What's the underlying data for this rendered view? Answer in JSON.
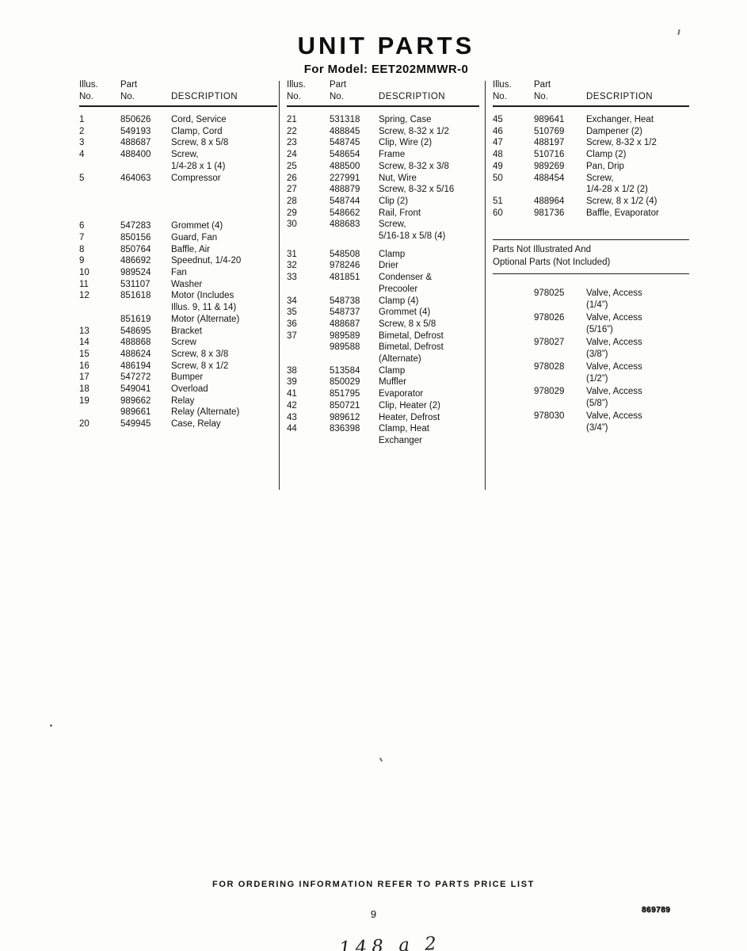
{
  "page": {
    "title": "UNIT PARTS",
    "subtitle": "For Model: EET202MMWR-0",
    "footer_note": "FOR ORDERING INFORMATION REFER TO PARTS PRICE LIST",
    "page_number": "9",
    "doc_number": "869789",
    "handwritten_note": "148 a 2"
  },
  "table_headers": {
    "illus": "Illus.",
    "part": "Part",
    "no": "No.",
    "description": "DESCRIPTION"
  },
  "columns": {
    "col1": [
      {
        "no": "1",
        "part": "850626",
        "desc": "Cord, Service"
      },
      {
        "no": "2",
        "part": "549193",
        "desc": "Clamp, Cord"
      },
      {
        "no": "3",
        "part": "488687",
        "desc": "Screw, 8 x 5/8"
      },
      {
        "no": "4",
        "part": "488400",
        "desc": "Screw,\n1/4-28 x 1 (4)"
      },
      {
        "no": "5",
        "part": "464063",
        "desc": "Compressor"
      },
      {
        "no": "6",
        "part": "547283",
        "desc": "Grommet (4)",
        "cls": "gap-lg"
      },
      {
        "no": "7",
        "part": "850156",
        "desc": "Guard, Fan"
      },
      {
        "no": "8",
        "part": "850764",
        "desc": "Baffle, Air"
      },
      {
        "no": "9",
        "part": "486692",
        "desc": "Speednut, 1/4-20"
      },
      {
        "no": "10",
        "part": "989524",
        "desc": "Fan"
      },
      {
        "no": "11",
        "part": "531107",
        "desc": "Washer"
      },
      {
        "no": "12",
        "part": "851618",
        "desc": "Motor (Includes\nIllus. 9, 11 & 14)"
      },
      {
        "no": "",
        "part": "851619",
        "desc": "Motor (Alternate)"
      },
      {
        "no": "13",
        "part": "548695",
        "desc": "Bracket"
      },
      {
        "no": "14",
        "part": "488868",
        "desc": "Screw"
      },
      {
        "no": "15",
        "part": "488624",
        "desc": "Screw, 8 x 3/8"
      },
      {
        "no": "16",
        "part": "486194",
        "desc": "Screw, 8 x 1/2"
      },
      {
        "no": "17",
        "part": "547272",
        "desc": "Bumper"
      },
      {
        "no": "18",
        "part": "549041",
        "desc": "Overload"
      },
      {
        "no": "19",
        "part": "989662",
        "desc": "Relay"
      },
      {
        "no": "",
        "part": "989661",
        "desc": "Relay (Alternate)"
      },
      {
        "no": "20",
        "part": "549945",
        "desc": "Case, Relay"
      }
    ],
    "col2": [
      {
        "no": "21",
        "part": "531318",
        "desc": "Spring, Case"
      },
      {
        "no": "22",
        "part": "488845",
        "desc": "Screw, 8-32 x 1/2"
      },
      {
        "no": "23",
        "part": "548745",
        "desc": "Clip, Wire (2)"
      },
      {
        "no": "24",
        "part": "548654",
        "desc": "Frame"
      },
      {
        "no": "25",
        "part": "488500",
        "desc": "Screw, 8-32 x 3/8"
      },
      {
        "no": "26",
        "part": "227991",
        "desc": "Nut, Wire"
      },
      {
        "no": "27",
        "part": "488879",
        "desc": "Screw, 8-32 x 5/16"
      },
      {
        "no": "28",
        "part": "548744",
        "desc": "Clip (2)"
      },
      {
        "no": "29",
        "part": "548662",
        "desc": "Rail, Front"
      },
      {
        "no": "30",
        "part": "488683",
        "desc": "Screw,\n5/16-18 x 5/8 (4)"
      },
      {
        "no": "31",
        "part": "548508",
        "desc": "Clamp",
        "cls": "gap-sm"
      },
      {
        "no": "32",
        "part": "978246",
        "desc": "Drier"
      },
      {
        "no": "33",
        "part": "481851",
        "desc": "Condenser &\nPrecooler"
      },
      {
        "no": "34",
        "part": "548738",
        "desc": "Clamp (4)"
      },
      {
        "no": "35",
        "part": "548737",
        "desc": "Grommet (4)"
      },
      {
        "no": "36",
        "part": "488687",
        "desc": "Screw, 8 x 5/8"
      },
      {
        "no": "37",
        "part": "989589",
        "desc": "Bimetal, Defrost"
      },
      {
        "no": "",
        "part": "989588",
        "desc": "Bimetal, Defrost\n(Alternate)"
      },
      {
        "no": "38",
        "part": "513584",
        "desc": "Clamp"
      },
      {
        "no": "39",
        "part": "850029",
        "desc": "Muffler"
      },
      {
        "no": "41",
        "part": "851795",
        "desc": "Evaporator"
      },
      {
        "no": "42",
        "part": "850721",
        "desc": "Clip, Heater (2)"
      },
      {
        "no": "43",
        "part": "989612",
        "desc": "Heater, Defrost"
      },
      {
        "no": "44",
        "part": "836398",
        "desc": "Clamp, Heat\nExchanger"
      }
    ],
    "col3": [
      {
        "no": "45",
        "part": "989641",
        "desc": "Exchanger, Heat"
      },
      {
        "no": "46",
        "part": "510769",
        "desc": "Dampener (2)"
      },
      {
        "no": "47",
        "part": "488197",
        "desc": "Screw, 8-32 x 1/2"
      },
      {
        "no": "48",
        "part": "510716",
        "desc": "Clamp (2)"
      },
      {
        "no": "49",
        "part": "989269",
        "desc": "Pan, Drip"
      },
      {
        "no": "50",
        "part": "488454",
        "desc": "Screw,\n1/4-28 x 1/2 (2)"
      },
      {
        "no": "51",
        "part": "488964",
        "desc": "Screw, 8 x 1/2 (4)"
      },
      {
        "no": "60",
        "part": "981736",
        "desc": "Baffle, Evaporator"
      }
    ]
  },
  "not_illustrated": {
    "heading_line1": "Parts Not Illustrated And",
    "heading_line2": "Optional Parts (Not Included)",
    "rows": [
      {
        "no": "",
        "part": "978025",
        "desc": "Valve, Access\n(1/4”)"
      },
      {
        "no": "",
        "part": "978026",
        "desc": "Valve, Access\n(5/16”)"
      },
      {
        "no": "",
        "part": "978027",
        "desc": "Valve, Access\n(3/8”)"
      },
      {
        "no": "",
        "part": "978028",
        "desc": "Valve, Access\n(1/2”)"
      },
      {
        "no": "",
        "part": "978029",
        "desc": "Valve, Access\n(5/8”)"
      },
      {
        "no": "",
        "part": "978030",
        "desc": "Valve, Access\n(3/4”)"
      }
    ]
  }
}
